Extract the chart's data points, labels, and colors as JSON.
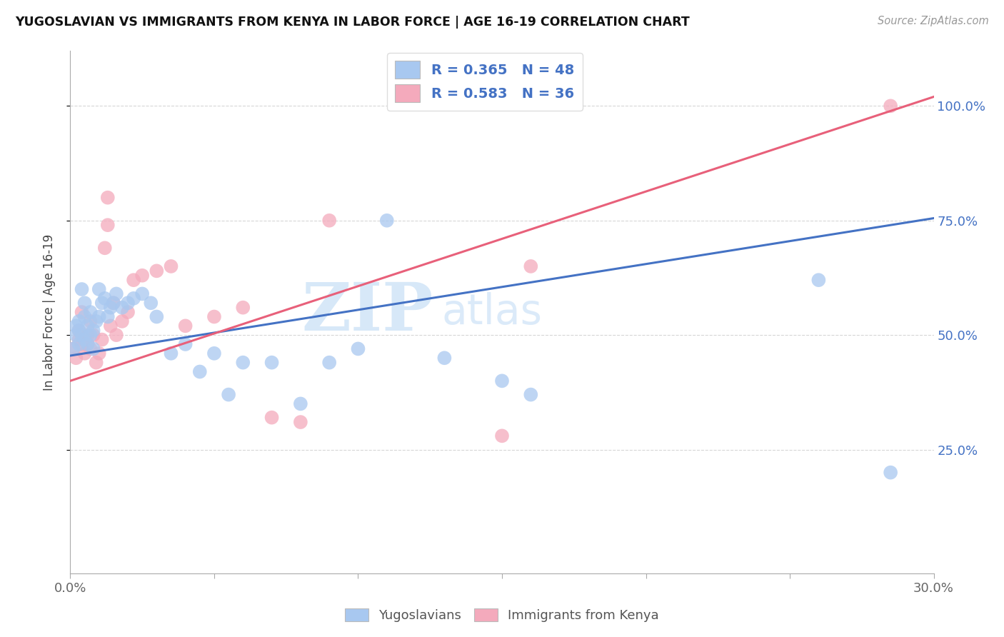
{
  "title": "YUGOSLAVIAN VS IMMIGRANTS FROM KENYA IN LABOR FORCE | AGE 16-19 CORRELATION CHART",
  "source": "Source: ZipAtlas.com",
  "ylabel": "In Labor Force | Age 16-19",
  "xlim": [
    0.0,
    0.3
  ],
  "ylim": [
    -0.02,
    1.12
  ],
  "ytick_values": [
    0.25,
    0.5,
    0.75,
    1.0
  ],
  "xtick_values": [
    0.0,
    0.05,
    0.1,
    0.15,
    0.2,
    0.25,
    0.3
  ],
  "blue_R": "0.365",
  "blue_N": "48",
  "pink_R": "0.583",
  "pink_N": "36",
  "blue_color": "#A8C8F0",
  "pink_color": "#F4AABC",
  "blue_line_color": "#4472C4",
  "pink_line_color": "#E8607A",
  "legend_label_blue": "Yugoslavians",
  "legend_label_pink": "Immigrants from Kenya",
  "watermark_zip": "ZIP",
  "watermark_atlas": "atlas",
  "blue_x": [
    0.001,
    0.002,
    0.002,
    0.003,
    0.003,
    0.003,
    0.004,
    0.004,
    0.005,
    0.005,
    0.005,
    0.006,
    0.006,
    0.007,
    0.007,
    0.008,
    0.008,
    0.009,
    0.01,
    0.01,
    0.011,
    0.012,
    0.013,
    0.014,
    0.015,
    0.016,
    0.018,
    0.02,
    0.022,
    0.025,
    0.028,
    0.03,
    0.035,
    0.04,
    0.045,
    0.05,
    0.055,
    0.06,
    0.07,
    0.08,
    0.09,
    0.1,
    0.11,
    0.13,
    0.15,
    0.16,
    0.26,
    0.285
  ],
  "blue_y": [
    0.47,
    0.5,
    0.52,
    0.48,
    0.51,
    0.53,
    0.5,
    0.6,
    0.49,
    0.54,
    0.57,
    0.48,
    0.52,
    0.5,
    0.55,
    0.47,
    0.51,
    0.53,
    0.54,
    0.6,
    0.57,
    0.58,
    0.54,
    0.56,
    0.57,
    0.59,
    0.56,
    0.57,
    0.58,
    0.59,
    0.57,
    0.54,
    0.46,
    0.48,
    0.42,
    0.46,
    0.37,
    0.44,
    0.44,
    0.35,
    0.44,
    0.47,
    0.75,
    0.45,
    0.4,
    0.37,
    0.62,
    0.2
  ],
  "pink_x": [
    0.001,
    0.002,
    0.003,
    0.003,
    0.004,
    0.004,
    0.005,
    0.006,
    0.006,
    0.007,
    0.007,
    0.008,
    0.009,
    0.01,
    0.011,
    0.012,
    0.013,
    0.013,
    0.014,
    0.015,
    0.016,
    0.018,
    0.02,
    0.022,
    0.025,
    0.03,
    0.035,
    0.04,
    0.05,
    0.06,
    0.07,
    0.08,
    0.09,
    0.15,
    0.16,
    0.285
  ],
  "pink_y": [
    0.47,
    0.45,
    0.49,
    0.51,
    0.48,
    0.55,
    0.46,
    0.48,
    0.5,
    0.53,
    0.47,
    0.5,
    0.44,
    0.46,
    0.49,
    0.69,
    0.74,
    0.8,
    0.52,
    0.57,
    0.5,
    0.53,
    0.55,
    0.62,
    0.63,
    0.64,
    0.65,
    0.52,
    0.54,
    0.56,
    0.32,
    0.31,
    0.75,
    0.28,
    0.65,
    1.0
  ]
}
